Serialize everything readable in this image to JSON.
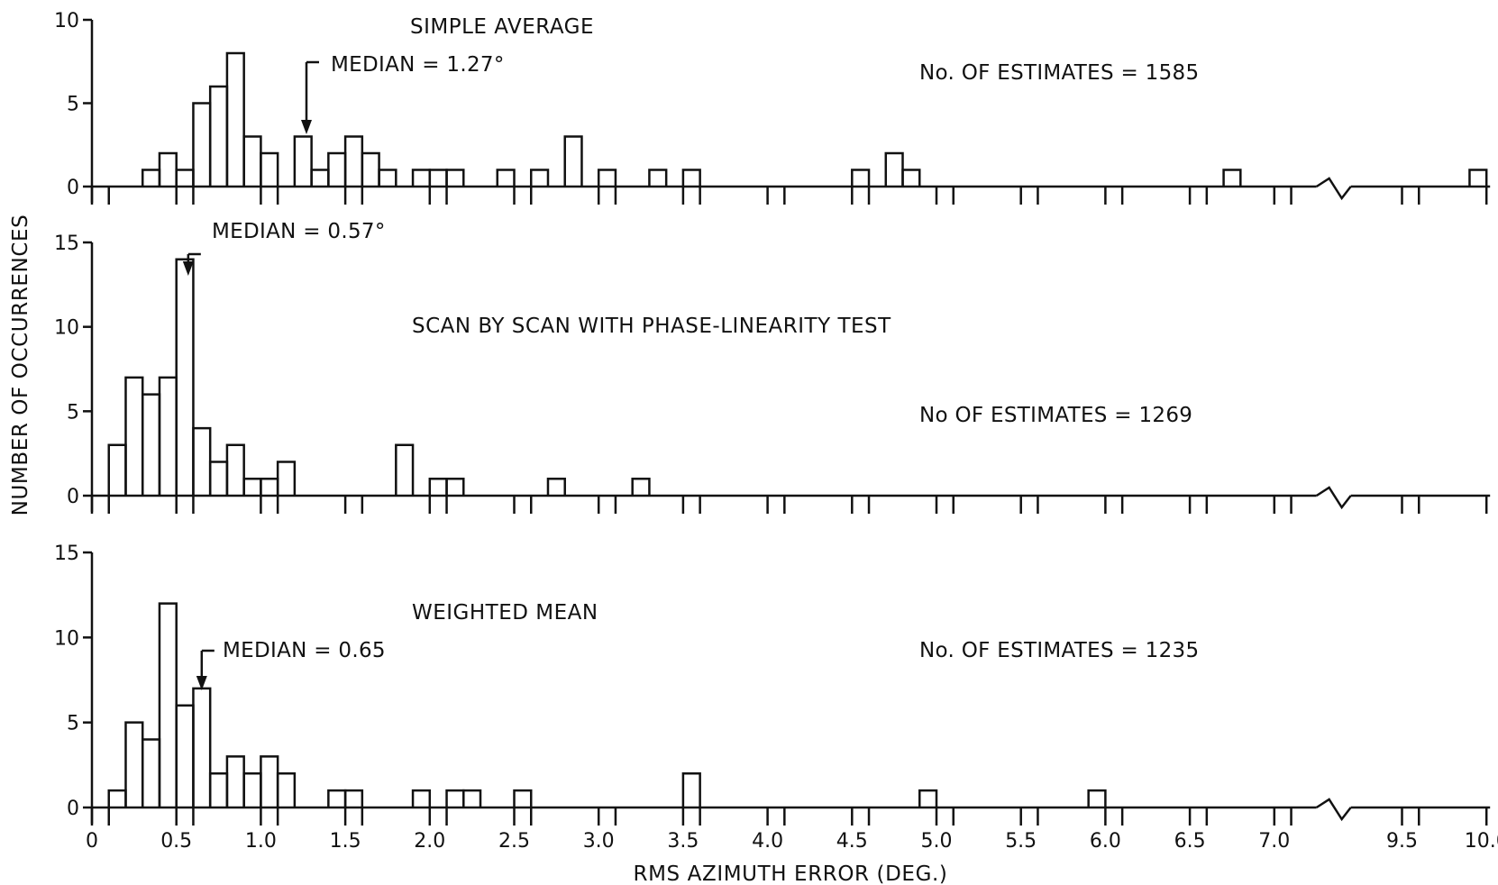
{
  "chart_data": {
    "type": "bar",
    "xlabel": "RMS AZIMUTH ERROR (DEG.)",
    "ylabel": "NUMBER OF OCCURRENCES",
    "x_ticks": [
      "0",
      "0.5",
      "1.0",
      "1.5",
      "2.0",
      "2.5",
      "3.0",
      "3.5",
      "4.0",
      "4.5",
      "5.0",
      "5.5",
      "6.0",
      "6.5",
      "7.0",
      "9.5",
      "10.0"
    ],
    "x_tick_values": [
      0,
      0.5,
      1.0,
      1.5,
      2.0,
      2.5,
      3.0,
      3.5,
      4.0,
      4.5,
      5.0,
      5.5,
      6.0,
      6.5,
      7.0,
      9.5,
      10.0
    ],
    "axis_break": [
      7.25,
      9.25
    ],
    "bin_width": 0.1,
    "panels": [
      {
        "title": "SIMPLE AVERAGE",
        "median_label": "MEDIAN = 1.27°",
        "median": 1.27,
        "estimates_label": "No. OF ESTIMATES = 1585",
        "ylim": [
          0,
          10
        ],
        "y_ticks": [
          "0",
          "5",
          "10"
        ],
        "y_tick_values": [
          0,
          5,
          10
        ],
        "bins": [
          {
            "x": 0.4,
            "y": 1
          },
          {
            "x": 0.5,
            "y": 2
          },
          {
            "x": 0.6,
            "y": 1
          },
          {
            "x": 0.7,
            "y": 5
          },
          {
            "x": 0.8,
            "y": 6
          },
          {
            "x": 0.9,
            "y": 8
          },
          {
            "x": 1.0,
            "y": 3
          },
          {
            "x": 1.1,
            "y": 2
          },
          {
            "x": 1.3,
            "y": 3
          },
          {
            "x": 1.4,
            "y": 1
          },
          {
            "x": 1.5,
            "y": 2
          },
          {
            "x": 1.6,
            "y": 3
          },
          {
            "x": 1.7,
            "y": 2
          },
          {
            "x": 1.8,
            "y": 1
          },
          {
            "x": 2.0,
            "y": 1
          },
          {
            "x": 2.1,
            "y": 1
          },
          {
            "x": 2.2,
            "y": 1
          },
          {
            "x": 2.5,
            "y": 1
          },
          {
            "x": 2.7,
            "y": 1
          },
          {
            "x": 2.9,
            "y": 3
          },
          {
            "x": 3.1,
            "y": 1
          },
          {
            "x": 3.4,
            "y": 1
          },
          {
            "x": 3.6,
            "y": 1
          },
          {
            "x": 4.6,
            "y": 1
          },
          {
            "x": 4.8,
            "y": 2
          },
          {
            "x": 4.9,
            "y": 1
          },
          {
            "x": 6.8,
            "y": 1
          },
          {
            "x": 10.0,
            "y": 1
          }
        ]
      },
      {
        "title": "SCAN BY SCAN WITH PHASE-LINEARITY TEST",
        "median_label": "MEDIAN = 0.57°",
        "median": 0.57,
        "estimates_label": "No OF ESTIMATES = 1269",
        "ylim": [
          0,
          15
        ],
        "y_ticks": [
          "0",
          "5",
          "10",
          "15"
        ],
        "y_tick_values": [
          0,
          5,
          10,
          15
        ],
        "bins": [
          {
            "x": 0.2,
            "y": 3
          },
          {
            "x": 0.3,
            "y": 7
          },
          {
            "x": 0.4,
            "y": 6
          },
          {
            "x": 0.5,
            "y": 7
          },
          {
            "x": 0.6,
            "y": 14
          },
          {
            "x": 0.7,
            "y": 4
          },
          {
            "x": 0.8,
            "y": 2
          },
          {
            "x": 0.9,
            "y": 3
          },
          {
            "x": 1.0,
            "y": 1
          },
          {
            "x": 1.1,
            "y": 1
          },
          {
            "x": 1.2,
            "y": 2
          },
          {
            "x": 1.9,
            "y": 3
          },
          {
            "x": 2.1,
            "y": 1
          },
          {
            "x": 2.2,
            "y": 1
          },
          {
            "x": 2.8,
            "y": 1
          },
          {
            "x": 3.3,
            "y": 1
          }
        ]
      },
      {
        "title": "WEIGHTED MEAN",
        "median_label": "MEDIAN = 0.65",
        "median": 0.65,
        "estimates_label": "No. OF ESTIMATES = 1235",
        "ylim": [
          0,
          15
        ],
        "y_ticks": [
          "0",
          "5",
          "10",
          "15"
        ],
        "y_tick_values": [
          0,
          5,
          10,
          15
        ],
        "bins": [
          {
            "x": 0.2,
            "y": 1
          },
          {
            "x": 0.3,
            "y": 5
          },
          {
            "x": 0.4,
            "y": 4
          },
          {
            "x": 0.5,
            "y": 12
          },
          {
            "x": 0.6,
            "y": 6
          },
          {
            "x": 0.7,
            "y": 7
          },
          {
            "x": 0.8,
            "y": 2
          },
          {
            "x": 0.9,
            "y": 3
          },
          {
            "x": 1.0,
            "y": 2
          },
          {
            "x": 1.1,
            "y": 3
          },
          {
            "x": 1.2,
            "y": 2
          },
          {
            "x": 1.5,
            "y": 1
          },
          {
            "x": 1.6,
            "y": 1
          },
          {
            "x": 2.0,
            "y": 1
          },
          {
            "x": 2.2,
            "y": 1
          },
          {
            "x": 2.3,
            "y": 1
          },
          {
            "x": 2.6,
            "y": 1
          },
          {
            "x": 3.6,
            "y": 2
          },
          {
            "x": 5.0,
            "y": 1
          },
          {
            "x": 6.0,
            "y": 1
          }
        ]
      }
    ]
  }
}
